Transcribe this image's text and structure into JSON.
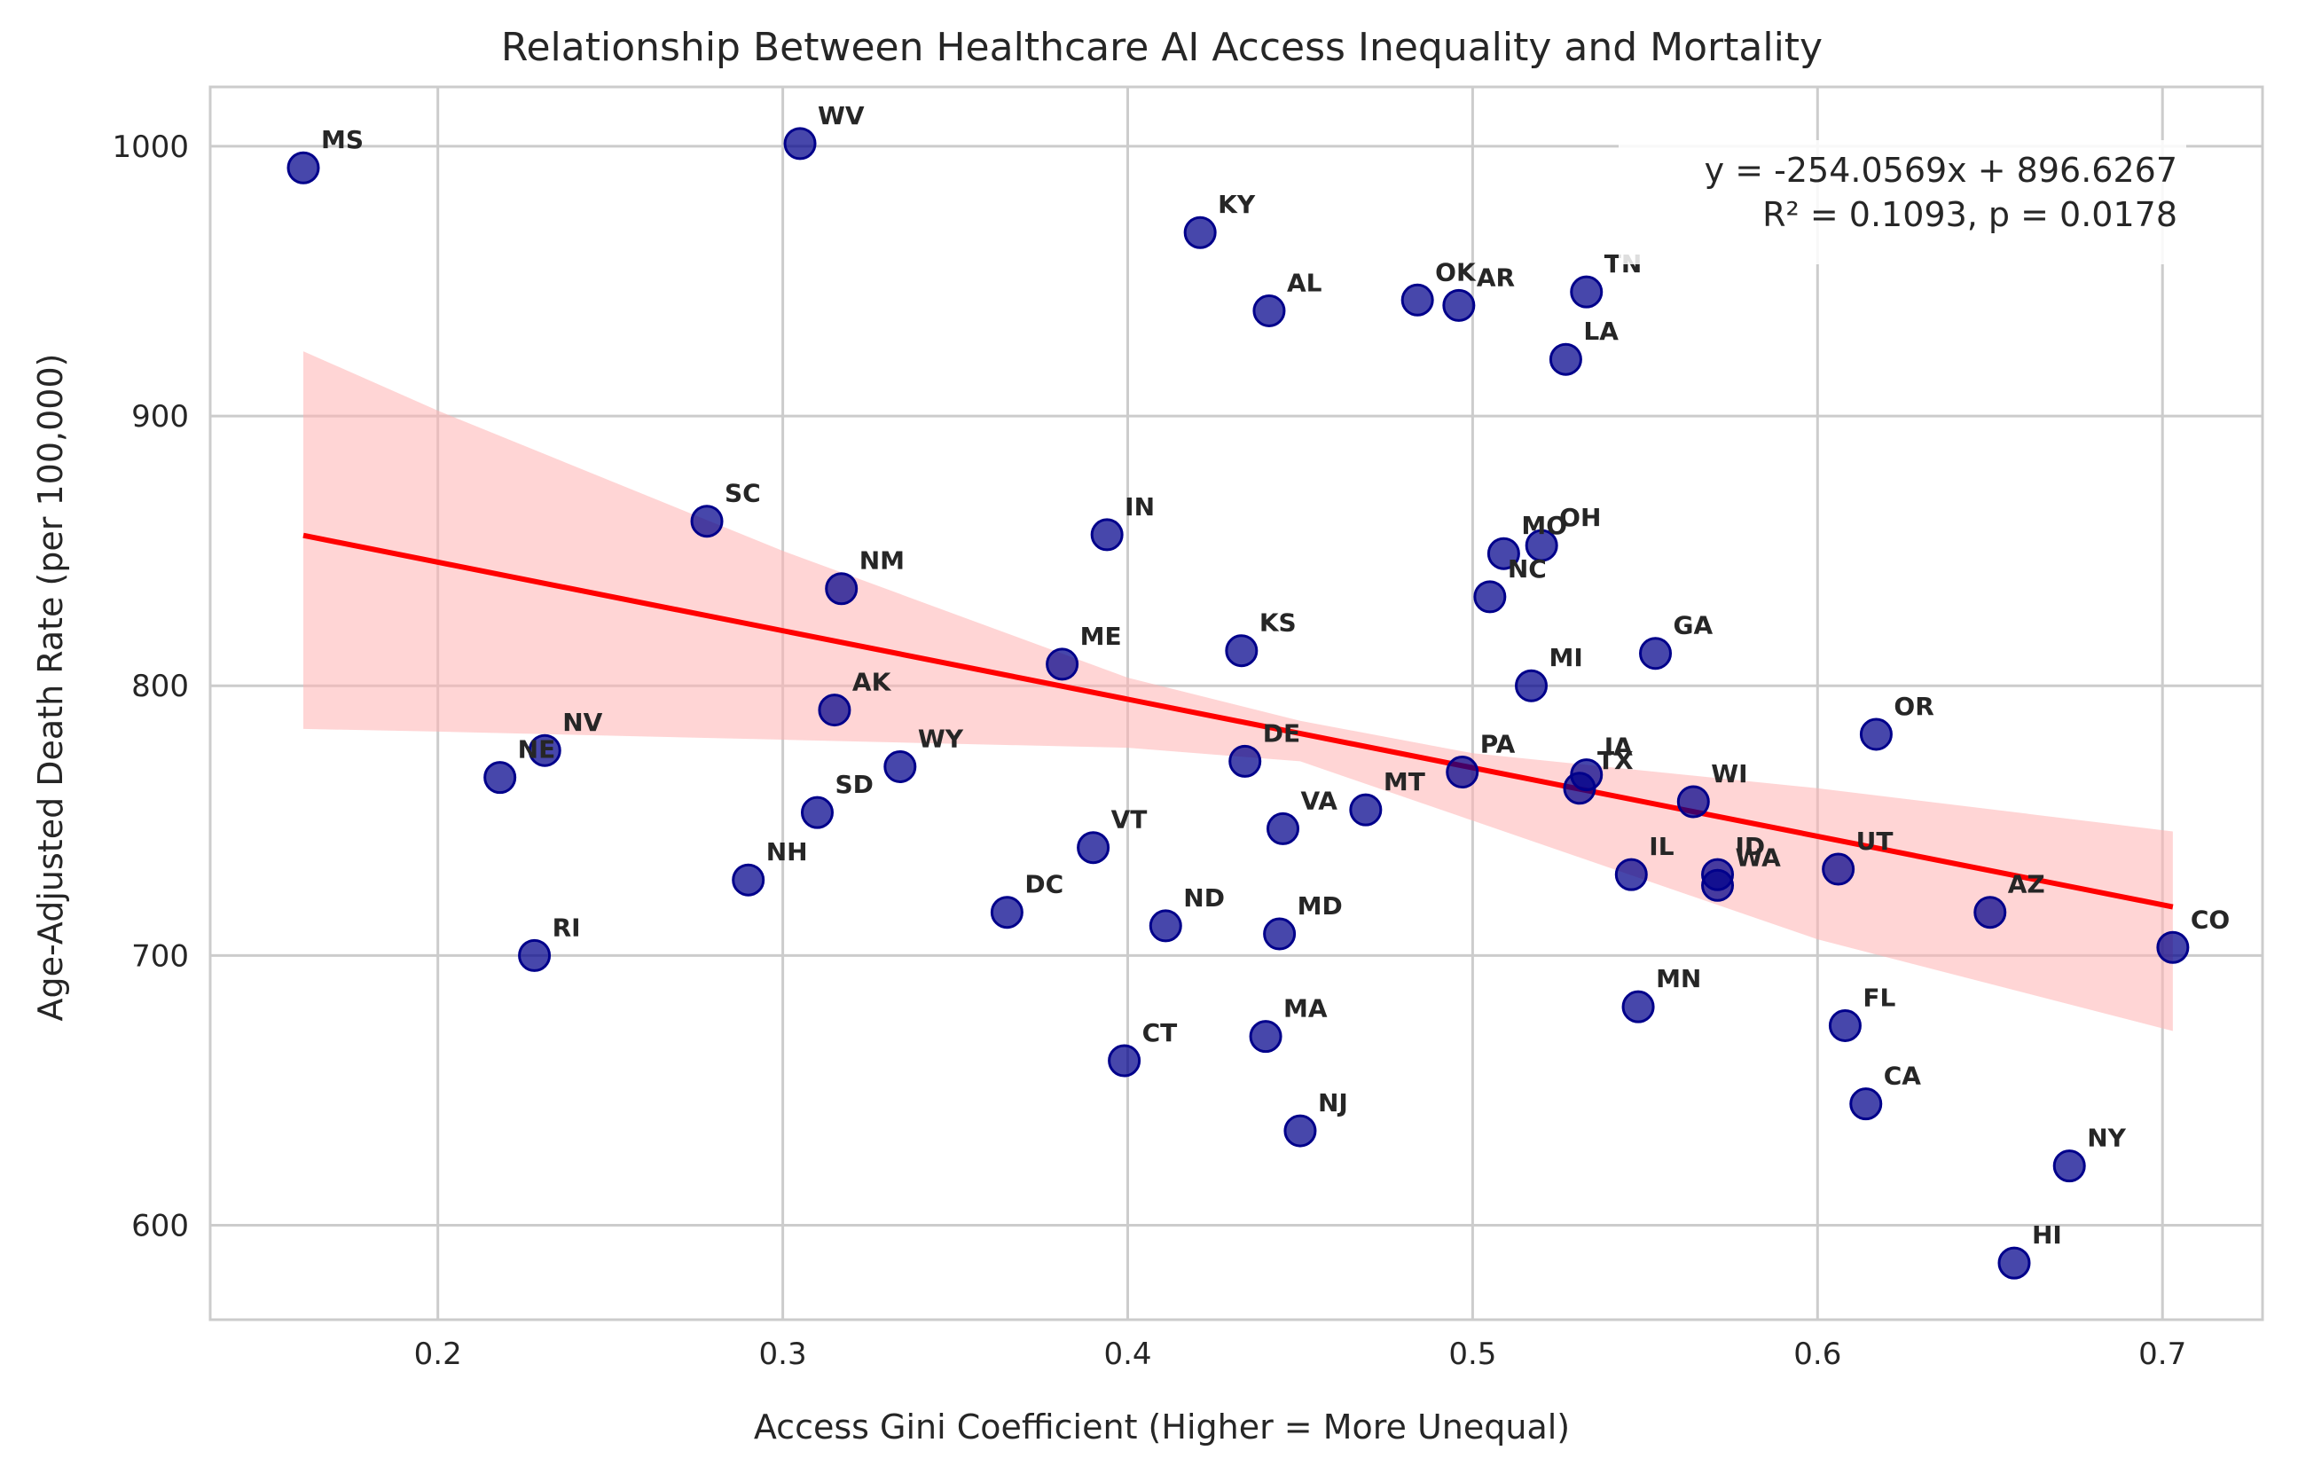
{
  "chart_data": {
    "type": "scatter",
    "title": "Relationship Between Healthcare AI Access Inequality and Mortality",
    "xlabel": "Access Gini Coefficient (Higher = More Unequal)",
    "ylabel": "Age-Adjusted Death Rate (per 100,000)",
    "xlim": [
      0.134,
      0.729
    ],
    "ylim": [
      565,
      1022
    ],
    "x_ticks": [
      0.2,
      0.3,
      0.4,
      0.5,
      0.6,
      0.7
    ],
    "x_tick_labels": [
      "0.2",
      "0.3",
      "0.4",
      "0.5",
      "0.6",
      "0.7"
    ],
    "y_ticks": [
      600,
      700,
      800,
      900,
      1000
    ],
    "y_tick_labels": [
      "600",
      "700",
      "800",
      "900",
      "1000"
    ],
    "grid": true,
    "annotation": {
      "line1": "y = -254.0569x + 896.6267",
      "line2": "R² = 0.1093, p = 0.0178",
      "placement": "top-right"
    },
    "regression": {
      "slope": -254.0569,
      "intercept": 896.6267,
      "x_range": [
        0.161,
        0.703
      ]
    },
    "confidence_band": {
      "x": [
        0.161,
        0.2,
        0.3,
        0.4,
        0.45,
        0.5,
        0.6,
        0.703
      ],
      "upper": [
        924,
        902,
        850,
        803,
        787,
        775,
        762,
        746
      ],
      "lower": [
        784,
        783,
        780,
        777,
        772,
        750,
        706,
        672
      ]
    },
    "colors": {
      "points": "#00008b",
      "line": "#ff0000",
      "band": "#ffb3b3",
      "grid": "#cccccc",
      "text": "#262626"
    },
    "points": [
      {
        "label": "MS",
        "x": 0.161,
        "y": 992
      },
      {
        "label": "WV",
        "x": 0.305,
        "y": 1001
      },
      {
        "label": "KY",
        "x": 0.421,
        "y": 968
      },
      {
        "label": "AL",
        "x": 0.441,
        "y": 939
      },
      {
        "label": "OK",
        "x": 0.484,
        "y": 943
      },
      {
        "label": "AR",
        "x": 0.496,
        "y": 941
      },
      {
        "label": "TN",
        "x": 0.533,
        "y": 946
      },
      {
        "label": "LA",
        "x": 0.527,
        "y": 921
      },
      {
        "label": "SC",
        "x": 0.278,
        "y": 861
      },
      {
        "label": "IN",
        "x": 0.394,
        "y": 856
      },
      {
        "label": "NM",
        "x": 0.317,
        "y": 836
      },
      {
        "label": "MO",
        "x": 0.509,
        "y": 849
      },
      {
        "label": "OH",
        "x": 0.52,
        "y": 852
      },
      {
        "label": "NC",
        "x": 0.505,
        "y": 833
      },
      {
        "label": "KS",
        "x": 0.433,
        "y": 813
      },
      {
        "label": "ME",
        "x": 0.381,
        "y": 808
      },
      {
        "label": "GA",
        "x": 0.553,
        "y": 812
      },
      {
        "label": "MI",
        "x": 0.517,
        "y": 800
      },
      {
        "label": "AK",
        "x": 0.315,
        "y": 791
      },
      {
        "label": "OR",
        "x": 0.617,
        "y": 782
      },
      {
        "label": "NV",
        "x": 0.231,
        "y": 776
      },
      {
        "label": "NE",
        "x": 0.218,
        "y": 766
      },
      {
        "label": "WY",
        "x": 0.334,
        "y": 770
      },
      {
        "label": "DE",
        "x": 0.434,
        "y": 772
      },
      {
        "label": "PA",
        "x": 0.497,
        "y": 768
      },
      {
        "label": "IA",
        "x": 0.533,
        "y": 767
      },
      {
        "label": "TX",
        "x": 0.531,
        "y": 762
      },
      {
        "label": "WI",
        "x": 0.564,
        "y": 757
      },
      {
        "label": "SD",
        "x": 0.31,
        "y": 753
      },
      {
        "label": "MT",
        "x": 0.469,
        "y": 754
      },
      {
        "label": "VA",
        "x": 0.445,
        "y": 747
      },
      {
        "label": "VT",
        "x": 0.39,
        "y": 740
      },
      {
        "label": "IL",
        "x": 0.546,
        "y": 730
      },
      {
        "label": "ID",
        "x": 0.571,
        "y": 730
      },
      {
        "label": "WA",
        "x": 0.571,
        "y": 726
      },
      {
        "label": "UT",
        "x": 0.606,
        "y": 732
      },
      {
        "label": "NH",
        "x": 0.29,
        "y": 728
      },
      {
        "label": "AZ",
        "x": 0.65,
        "y": 716
      },
      {
        "label": "DC",
        "x": 0.365,
        "y": 716
      },
      {
        "label": "ND",
        "x": 0.411,
        "y": 711
      },
      {
        "label": "MD",
        "x": 0.444,
        "y": 708
      },
      {
        "label": "CO",
        "x": 0.703,
        "y": 703
      },
      {
        "label": "RI",
        "x": 0.228,
        "y": 700
      },
      {
        "label": "MN",
        "x": 0.548,
        "y": 681
      },
      {
        "label": "FL",
        "x": 0.608,
        "y": 674
      },
      {
        "label": "MA",
        "x": 0.44,
        "y": 670
      },
      {
        "label": "CT",
        "x": 0.399,
        "y": 661
      },
      {
        "label": "CA",
        "x": 0.614,
        "y": 645
      },
      {
        "label": "NJ",
        "x": 0.45,
        "y": 635
      },
      {
        "label": "NY",
        "x": 0.673,
        "y": 622
      },
      {
        "label": "HI",
        "x": 0.657,
        "y": 586
      }
    ]
  }
}
